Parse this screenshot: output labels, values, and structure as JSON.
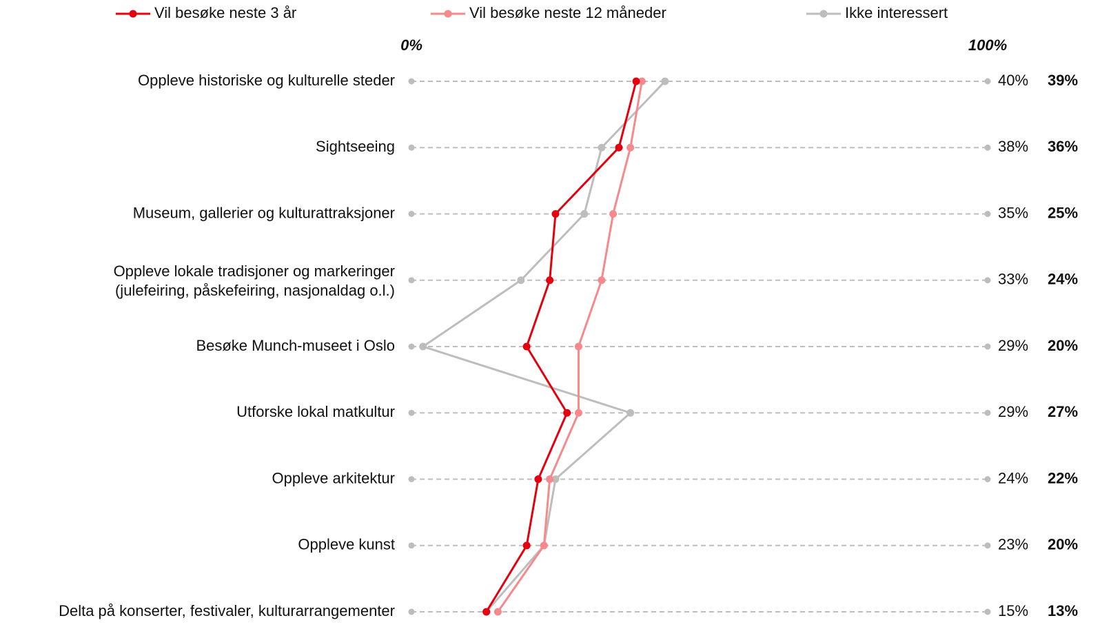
{
  "chart_data": {
    "type": "line",
    "orientation": "horizontal",
    "categories": [
      "Oppleve historiske og kulturelle steder",
      "Sightseeing",
      "Museum, gallerier og kulturattraksjoner",
      "Oppleve lokale tradisjoner og markeringer\n(julefeiring, påskefeiring, nasjonaldag o.l.)",
      "Besøke Munch-museet i Oslo",
      "Utforske lokal matkultur",
      "Oppleve arkitektur",
      "Oppleve kunst",
      "Delta på konserter, festivaler, kulturarrangementer"
    ],
    "series": [
      {
        "name": "Vil besøke neste 3 år",
        "color": "#e3000f",
        "values": [
          39,
          36,
          25,
          24,
          20,
          27,
          22,
          20,
          13
        ],
        "value_labels": [
          "39%",
          "36%",
          "25%",
          "24%",
          "20%",
          "27%",
          "22%",
          "20%",
          "13%"
        ]
      },
      {
        "name": "Vil besøke neste 12 måneder",
        "color": "#f6898c",
        "values": [
          40,
          38,
          35,
          33,
          29,
          29,
          24,
          23,
          15
        ],
        "value_labels": [
          "40%",
          "38%",
          "35%",
          "33%",
          "29%",
          "29%",
          "24%",
          "23%",
          "15%"
        ]
      },
      {
        "name": "Ikke interessert",
        "color": "#bdbdbd",
        "values": [
          44,
          33,
          30,
          19,
          2,
          38,
          25,
          23,
          13
        ]
      }
    ],
    "xlim": [
      0,
      100
    ],
    "xticks": [
      {
        "value": 0,
        "label": "0%"
      },
      {
        "value": 100,
        "label": "100%"
      }
    ]
  }
}
